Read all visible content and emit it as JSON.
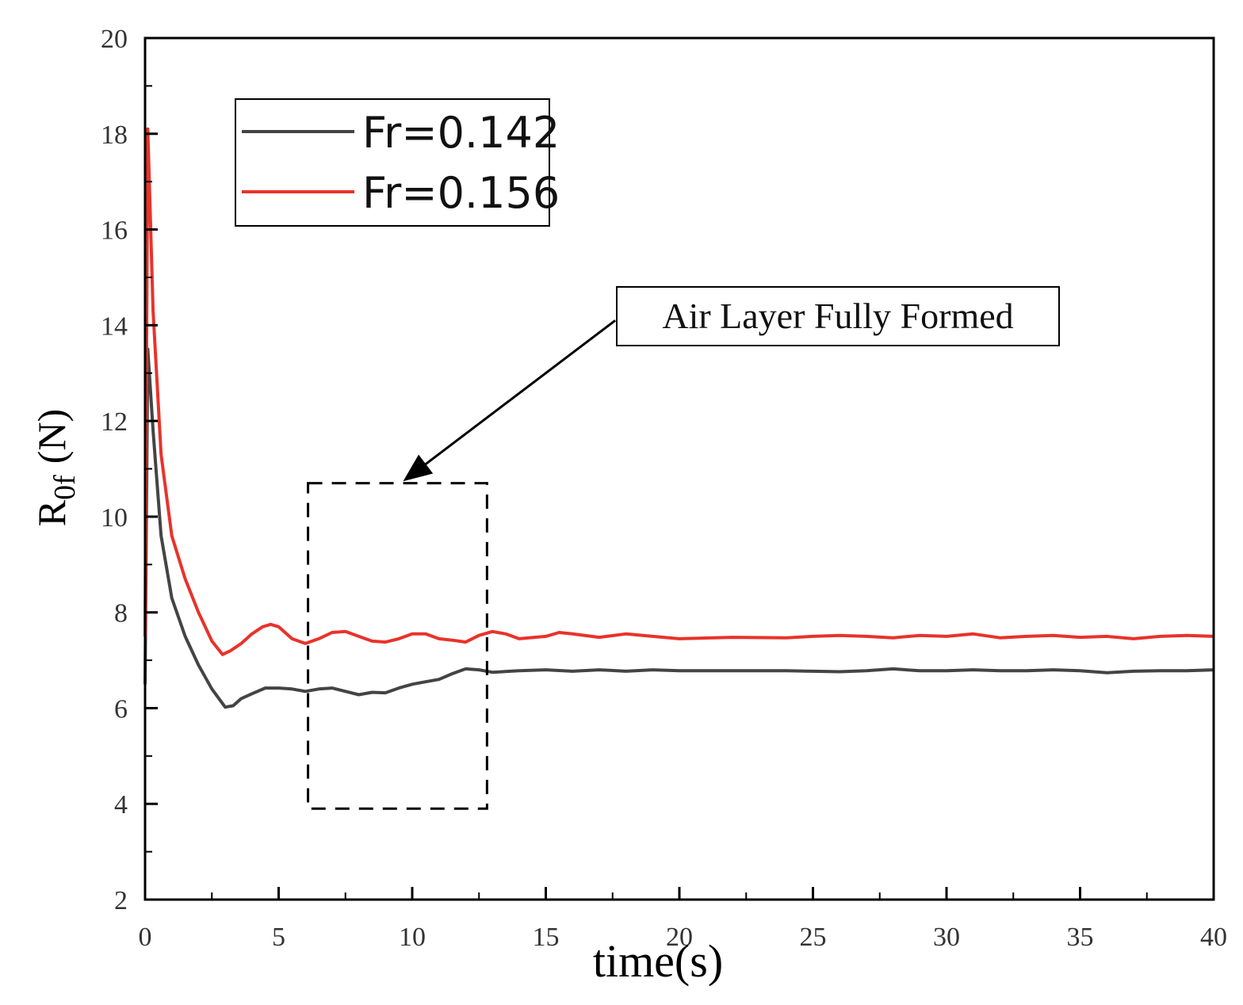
{
  "chart_data": {
    "type": "line",
    "xlabel": "time(s)",
    "ylabel_main": "R",
    "ylabel_sub": "0f",
    "ylabel_unit": "(N)",
    "xlim": [
      0,
      40
    ],
    "ylim": [
      2,
      20
    ],
    "x_ticks": [
      0,
      5,
      10,
      15,
      20,
      25,
      30,
      35,
      40
    ],
    "y_ticks": [
      2,
      4,
      6,
      8,
      10,
      12,
      14,
      16,
      18,
      20
    ],
    "grid": false,
    "legend_position": "top-left",
    "series": [
      {
        "name": "Fr=0.142",
        "color": "#444444",
        "points": [
          [
            0,
            6.5
          ],
          [
            0.1,
            13.5
          ],
          [
            0.3,
            11.8
          ],
          [
            0.6,
            9.6
          ],
          [
            1.0,
            8.3
          ],
          [
            1.5,
            7.5
          ],
          [
            2.0,
            6.9
          ],
          [
            2.5,
            6.4
          ],
          [
            3.0,
            6.02
          ],
          [
            3.3,
            6.05
          ],
          [
            3.6,
            6.2
          ],
          [
            4.0,
            6.3
          ],
          [
            4.5,
            6.42
          ],
          [
            5.0,
            6.42
          ],
          [
            5.5,
            6.4
          ],
          [
            6.0,
            6.35
          ],
          [
            6.5,
            6.4
          ],
          [
            7.0,
            6.42
          ],
          [
            7.5,
            6.35
          ],
          [
            8.0,
            6.28
          ],
          [
            8.5,
            6.33
          ],
          [
            9.0,
            6.32
          ],
          [
            9.5,
            6.42
          ],
          [
            10.0,
            6.5
          ],
          [
            10.5,
            6.55
          ],
          [
            11.0,
            6.6
          ],
          [
            11.5,
            6.72
          ],
          [
            12.0,
            6.82
          ],
          [
            12.5,
            6.8
          ],
          [
            13.0,
            6.75
          ],
          [
            14.0,
            6.78
          ],
          [
            15.0,
            6.8
          ],
          [
            16.0,
            6.77
          ],
          [
            17.0,
            6.8
          ],
          [
            18.0,
            6.77
          ],
          [
            19.0,
            6.8
          ],
          [
            20.0,
            6.78
          ],
          [
            22.0,
            6.78
          ],
          [
            24.0,
            6.78
          ],
          [
            25.0,
            6.77
          ],
          [
            26.0,
            6.76
          ],
          [
            27.0,
            6.78
          ],
          [
            28.0,
            6.82
          ],
          [
            29.0,
            6.78
          ],
          [
            30.0,
            6.78
          ],
          [
            31.0,
            6.8
          ],
          [
            32.0,
            6.78
          ],
          [
            33.0,
            6.78
          ],
          [
            34.0,
            6.8
          ],
          [
            35.0,
            6.78
          ],
          [
            36.0,
            6.74
          ],
          [
            37.0,
            6.77
          ],
          [
            38.0,
            6.78
          ],
          [
            39.0,
            6.78
          ],
          [
            40.0,
            6.8
          ]
        ]
      },
      {
        "name": "Fr=0.156",
        "color": "#e8332a",
        "points": [
          [
            0,
            7.5
          ],
          [
            0.1,
            18.1
          ],
          [
            0.3,
            14.3
          ],
          [
            0.6,
            11.3
          ],
          [
            1.0,
            9.6
          ],
          [
            1.5,
            8.7
          ],
          [
            2.0,
            8.0
          ],
          [
            2.5,
            7.4
          ],
          [
            2.9,
            7.12
          ],
          [
            3.2,
            7.2
          ],
          [
            3.6,
            7.35
          ],
          [
            4.0,
            7.55
          ],
          [
            4.4,
            7.7
          ],
          [
            4.7,
            7.75
          ],
          [
            5.0,
            7.7
          ],
          [
            5.5,
            7.45
          ],
          [
            6.0,
            7.35
          ],
          [
            6.5,
            7.45
          ],
          [
            7.0,
            7.58
          ],
          [
            7.5,
            7.6
          ],
          [
            8.0,
            7.5
          ],
          [
            8.5,
            7.4
          ],
          [
            9.0,
            7.38
          ],
          [
            9.5,
            7.45
          ],
          [
            10.0,
            7.55
          ],
          [
            10.5,
            7.55
          ],
          [
            11.0,
            7.45
          ],
          [
            11.5,
            7.42
          ],
          [
            12.0,
            7.38
          ],
          [
            12.5,
            7.52
          ],
          [
            13.0,
            7.6
          ],
          [
            13.5,
            7.55
          ],
          [
            14.0,
            7.45
          ],
          [
            15.0,
            7.5
          ],
          [
            15.5,
            7.58
          ],
          [
            16.0,
            7.55
          ],
          [
            17.0,
            7.48
          ],
          [
            18.0,
            7.55
          ],
          [
            19.0,
            7.5
          ],
          [
            20.0,
            7.45
          ],
          [
            22.0,
            7.48
          ],
          [
            24.0,
            7.47
          ],
          [
            25.0,
            7.5
          ],
          [
            26.0,
            7.52
          ],
          [
            27.0,
            7.5
          ],
          [
            28.0,
            7.47
          ],
          [
            29.0,
            7.52
          ],
          [
            30.0,
            7.5
          ],
          [
            31.0,
            7.55
          ],
          [
            32.0,
            7.47
          ],
          [
            33.0,
            7.5
          ],
          [
            34.0,
            7.52
          ],
          [
            35.0,
            7.48
          ],
          [
            36.0,
            7.5
          ],
          [
            37.0,
            7.45
          ],
          [
            38.0,
            7.5
          ],
          [
            39.0,
            7.52
          ],
          [
            40.0,
            7.5
          ]
        ]
      }
    ],
    "annotations": [
      {
        "text": "Air Layer Fully Formed",
        "box_x_range": [
          6.1,
          12.8
        ],
        "box_y_range": [
          3.9,
          10.7
        ],
        "arrow_tip": [
          9.8,
          10.8
        ],
        "arrow_tail": [
          17.6,
          14.1
        ]
      }
    ]
  }
}
